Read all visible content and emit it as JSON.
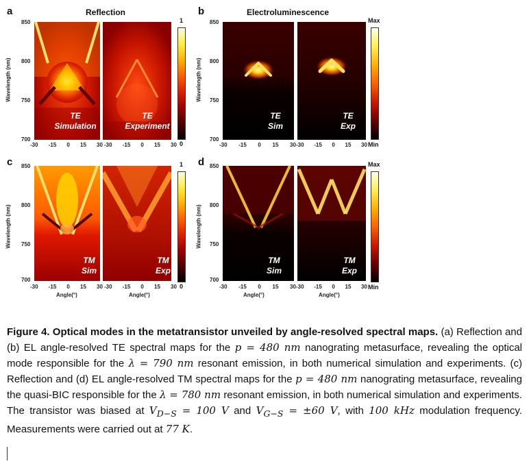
{
  "panels": {
    "a": {
      "letter": "a",
      "title": "Reflection",
      "ylabel": "Wavelength (nm)",
      "yticks": [
        "850",
        "800",
        "750",
        "700"
      ],
      "xticks_left": [
        "-30",
        "-15",
        "0",
        "15",
        "30"
      ],
      "xticks_right": [
        "-30",
        "-15",
        "0",
        "15",
        "30"
      ],
      "ann_left": [
        "TE",
        "Simulation"
      ],
      "ann_right": [
        "TE",
        "Experiment"
      ],
      "cbar_top": "1",
      "cbar_bottom": "0"
    },
    "b": {
      "letter": "b",
      "title": "Electroluminescence",
      "ylabel": "Wavelength (nm)",
      "yticks": [
        "850",
        "800",
        "750",
        "700"
      ],
      "xticks_left": [
        "-30",
        "-15",
        "0",
        "15",
        "30"
      ],
      "xticks_right": [
        "-30",
        "-15",
        "0",
        "15",
        "30"
      ],
      "ann_left": [
        "TE",
        "Sim"
      ],
      "ann_right": [
        "TE",
        "Exp"
      ],
      "cbar_top": "Max",
      "cbar_bottom": "Min"
    },
    "c": {
      "letter": "c",
      "ylabel": "Wavelength (nm)",
      "yticks": [
        "850",
        "800",
        "750",
        "700"
      ],
      "xticks_left": [
        "-30",
        "-15",
        "0",
        "15",
        "30"
      ],
      "xticks_right": [
        "-30",
        "-15",
        "0",
        "15",
        "30"
      ],
      "xlabel": "Angle(°)",
      "ann_left": [
        "TM",
        "Sim"
      ],
      "ann_right": [
        "TM",
        "Exp"
      ],
      "cbar_top": "1",
      "cbar_bottom": "0"
    },
    "d": {
      "letter": "d",
      "ylabel": "Wavelength (nm)",
      "yticks": [
        "850",
        "800",
        "750",
        "700"
      ],
      "xticks_left": [
        "-30",
        "-15",
        "0",
        "15",
        "30"
      ],
      "xticks_right": [
        "-30",
        "-15",
        "0",
        "15",
        "30"
      ],
      "xlabel": "Angle(°)",
      "ann_left": [
        "TM",
        "Sim"
      ],
      "ann_right": [
        "TM",
        "Exp"
      ],
      "cbar_top": "Max",
      "cbar_bottom": "Min"
    }
  },
  "caption": {
    "heading": "Figure 4. Optical modes in the metatransistor unveiled by angle-resolved spectral maps.",
    "t1": " (a) Reflection and (b) EL angle-resolved TE spectral maps for the ",
    "m1": "p = 480 nm",
    "t2": " nanograting metasurface, revealing the optical mode responsible for the ",
    "m2": "λ = 790 nm",
    "t3": " resonant emission, in both numerical simulation and experiments. (c) Reflection and (d) EL angle-resolved TM spectral maps for the ",
    "m3": "p = 480 nm",
    "t4": " nanograting metasurface, revealing the quasi-BIC responsible for the ",
    "m4": "λ = 780 nm",
    "t5": " resonant emission, in both numerical simulation and experiments. The transistor was biased at ",
    "m5": "V",
    "m5sub": "D−S",
    "m5b": " = 100 V",
    "t6": " and ",
    "m6": "V",
    "m6sub": "G−S",
    "m6b": " = ±60 V",
    "t7": ", with ",
    "m7": "100 kHz",
    "t8": " modulation frequency. Measurements were carried out at ",
    "m8": "77 K",
    "t9": "."
  }
}
